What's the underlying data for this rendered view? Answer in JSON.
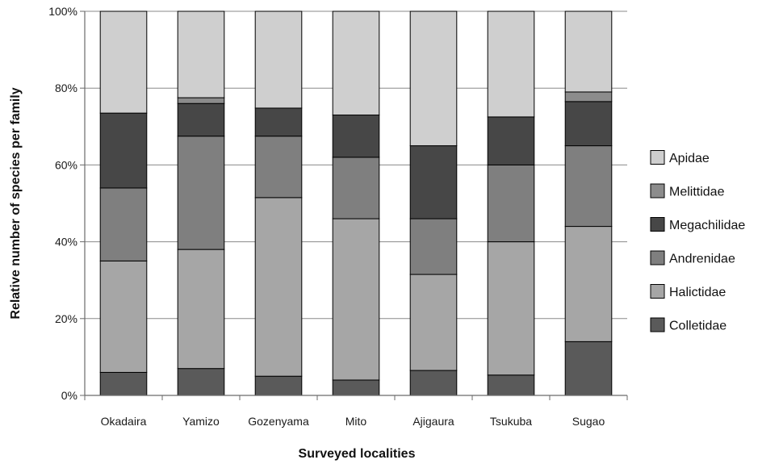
{
  "chart_data": {
    "type": "bar",
    "stacked": true,
    "percent_stacked": true,
    "title": "",
    "xlabel": "Surveyed localities",
    "ylabel": "Relative number of species per family",
    "ylim": [
      0,
      100
    ],
    "yticks": [
      "0%",
      "20%",
      "40%",
      "60%",
      "80%",
      "100%"
    ],
    "grid": true,
    "legend_position": "right",
    "categories": [
      "Okadaira",
      "Yamizo",
      "Gozenyama",
      "Mito",
      "Ajigaura",
      "Tsukuba",
      "Sugao"
    ],
    "series": [
      {
        "name": "Colletidae",
        "color": "#5a5a5a",
        "values": [
          6,
          7,
          5,
          4,
          6.5,
          5.3,
          14
        ]
      },
      {
        "name": "Halictidae",
        "color": "#a6a6a6",
        "values": [
          29,
          31,
          46.5,
          42,
          25,
          34.7,
          30
        ]
      },
      {
        "name": "Andrenidae",
        "color": "#7f7f7f",
        "values": [
          19,
          29.5,
          16,
          16,
          14.5,
          20,
          21
        ]
      },
      {
        "name": "Megachilidae",
        "color": "#474747",
        "values": [
          19.5,
          8.5,
          7.3,
          11,
          19,
          12.5,
          11.5
        ]
      },
      {
        "name": "Melittidae",
        "color": "#8c8c8c",
        "values": [
          0,
          1.5,
          0,
          0,
          0,
          0,
          2.5
        ]
      },
      {
        "name": "Apidae",
        "color": "#cfcfcf",
        "values": [
          26.5,
          22.5,
          25.2,
          27,
          35,
          27.5,
          21
        ]
      }
    ]
  }
}
